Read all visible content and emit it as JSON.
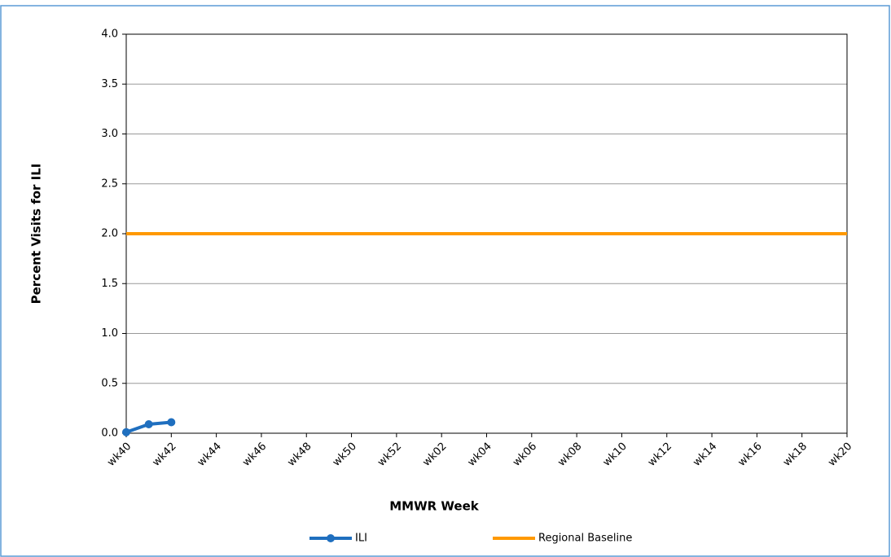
{
  "chart_data": {
    "type": "line",
    "x_label": "MMWR Week",
    "y_label": "Percent Visits for ILI",
    "categories": [
      "wk40",
      null,
      "wk42",
      null,
      "wk44",
      null,
      "wk46",
      null,
      "wk48",
      null,
      "wk50",
      null,
      "wk52",
      null,
      "wk02",
      null,
      "wk04",
      null,
      "wk06",
      null,
      "wk08",
      null,
      "wk10",
      null,
      "wk12",
      null,
      "wk14",
      null,
      "wk16",
      null,
      "wk18",
      null,
      "wk20"
    ],
    "series": [
      {
        "name": "ILI",
        "color": "#1f6fbf",
        "marker": true,
        "values": [
          0.01,
          0.09,
          0.11,
          null,
          null,
          null,
          null,
          null,
          null,
          null,
          null,
          null,
          null,
          null,
          null,
          null,
          null,
          null,
          null,
          null,
          null,
          null,
          null,
          null,
          null,
          null,
          null,
          null,
          null,
          null,
          null,
          null,
          null
        ]
      },
      {
        "name": "Regional Baseline",
        "color": "#ff9900",
        "marker": false,
        "values": [
          2.0,
          2.0,
          2.0,
          2.0,
          2.0,
          2.0,
          2.0,
          2.0,
          2.0,
          2.0,
          2.0,
          2.0,
          2.0,
          2.0,
          2.0,
          2.0,
          2.0,
          2.0,
          2.0,
          2.0,
          2.0,
          2.0,
          2.0,
          2.0,
          2.0,
          2.0,
          2.0,
          2.0,
          2.0,
          2.0,
          2.0,
          2.0,
          2.0
        ]
      }
    ],
    "ylim": [
      0,
      4
    ],
    "yticks": [
      {
        "value": 0,
        "label": "0.0"
      },
      {
        "value": 0.5,
        "label": "0.5"
      },
      {
        "value": 1,
        "label": "1.0"
      },
      {
        "value": 1.5,
        "label": "1.5"
      },
      {
        "value": 2,
        "label": "2.0"
      },
      {
        "value": 2.5,
        "label": "2.5"
      },
      {
        "value": 3,
        "label": "3.0"
      },
      {
        "value": 3.5,
        "label": "3.5"
      },
      {
        "value": 4,
        "label": "4.0"
      }
    ],
    "grid": true,
    "legend": "bottom"
  }
}
